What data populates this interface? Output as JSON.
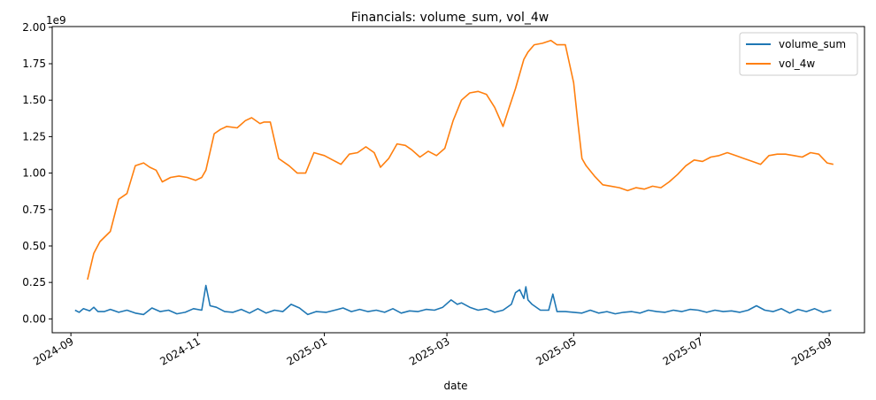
{
  "chart_data": {
    "type": "line",
    "title": "Financials: volume_sum, vol_4w",
    "xlabel": "date",
    "ylabel": "",
    "y_offset_label": "1e9",
    "ylim": [
      -0.095,
      2.005
    ],
    "xlim": [
      "2024-08-23",
      "2025-09-18"
    ],
    "x_ticks": [
      "2024-09",
      "2024-11",
      "2025-01",
      "2025-03",
      "2025-05",
      "2025-07",
      "2025-09"
    ],
    "y_ticks": [
      0.0,
      0.25,
      0.5,
      0.75,
      1.0,
      1.25,
      1.5,
      1.75,
      2.0
    ],
    "y_tick_labels": [
      "0.00",
      "0.25",
      "0.50",
      "0.75",
      "1.00",
      "1.25",
      "1.50",
      "1.75",
      "2.00"
    ],
    "grid": false,
    "legend_position": "top-right",
    "series": [
      {
        "name": "volume_sum",
        "color": "#1f77b4",
        "x": [
          "2024-09-03",
          "2024-09-05",
          "2024-09-07",
          "2024-09-10",
          "2024-09-12",
          "2024-09-14",
          "2024-09-17",
          "2024-09-20",
          "2024-09-24",
          "2024-09-28",
          "2024-10-02",
          "2024-10-06",
          "2024-10-10",
          "2024-10-14",
          "2024-10-18",
          "2024-10-22",
          "2024-10-26",
          "2024-10-30",
          "2024-11-03",
          "2024-11-05",
          "2024-11-07",
          "2024-11-10",
          "2024-11-14",
          "2024-11-18",
          "2024-11-22",
          "2024-11-26",
          "2024-11-30",
          "2024-12-04",
          "2024-12-08",
          "2024-12-12",
          "2024-12-16",
          "2024-12-20",
          "2024-12-24",
          "2024-12-28",
          "2025-01-02",
          "2025-01-06",
          "2025-01-10",
          "2025-01-14",
          "2025-01-18",
          "2025-01-22",
          "2025-01-26",
          "2025-01-30",
          "2025-02-03",
          "2025-02-07",
          "2025-02-11",
          "2025-02-15",
          "2025-02-19",
          "2025-02-23",
          "2025-02-27",
          "2025-03-03",
          "2025-03-06",
          "2025-03-08",
          "2025-03-12",
          "2025-03-16",
          "2025-03-20",
          "2025-03-24",
          "2025-03-28",
          "2025-04-01",
          "2025-04-03",
          "2025-04-05",
          "2025-04-07",
          "2025-04-08",
          "2025-04-09",
          "2025-04-11",
          "2025-04-15",
          "2025-04-19",
          "2025-04-21",
          "2025-04-23",
          "2025-04-27",
          "2025-05-01",
          "2025-05-05",
          "2025-05-09",
          "2025-05-13",
          "2025-05-17",
          "2025-05-21",
          "2025-05-25",
          "2025-05-29",
          "2025-06-02",
          "2025-06-06",
          "2025-06-10",
          "2025-06-14",
          "2025-06-18",
          "2025-06-22",
          "2025-06-26",
          "2025-06-30",
          "2025-07-04",
          "2025-07-08",
          "2025-07-12",
          "2025-07-16",
          "2025-07-20",
          "2025-07-24",
          "2025-07-28",
          "2025-08-01",
          "2025-08-05",
          "2025-08-09",
          "2025-08-13",
          "2025-08-17",
          "2025-08-21",
          "2025-08-25",
          "2025-08-29",
          "2025-09-02"
        ],
        "values": [
          0.06,
          0.045,
          0.07,
          0.055,
          0.08,
          0.05,
          0.05,
          0.065,
          0.045,
          0.06,
          0.04,
          0.03,
          0.075,
          0.05,
          0.06,
          0.035,
          0.045,
          0.07,
          0.06,
          0.23,
          0.09,
          0.08,
          0.05,
          0.045,
          0.065,
          0.04,
          0.07,
          0.04,
          0.06,
          0.05,
          0.1,
          0.075,
          0.03,
          0.05,
          0.045,
          0.06,
          0.075,
          0.05,
          0.065,
          0.05,
          0.06,
          0.045,
          0.07,
          0.04,
          0.055,
          0.05,
          0.065,
          0.06,
          0.08,
          0.13,
          0.1,
          0.11,
          0.08,
          0.06,
          0.07,
          0.045,
          0.06,
          0.1,
          0.18,
          0.2,
          0.14,
          0.22,
          0.13,
          0.1,
          0.06,
          0.06,
          0.17,
          0.05,
          0.05,
          0.045,
          0.04,
          0.06,
          0.04,
          0.05,
          0.035,
          0.045,
          0.05,
          0.04,
          0.06,
          0.05,
          0.045,
          0.06,
          0.05,
          0.065,
          0.06,
          0.045,
          0.06,
          0.05,
          0.055,
          0.045,
          0.06,
          0.09,
          0.06,
          0.05,
          0.07,
          0.04,
          0.065,
          0.05,
          0.07,
          0.045,
          0.06
        ]
      },
      {
        "name": "vol_4w",
        "color": "#ff7f0e",
        "x": [
          "2024-09-09",
          "2024-09-12",
          "2024-09-15",
          "2024-09-20",
          "2024-09-24",
          "2024-09-28",
          "2024-10-02",
          "2024-10-06",
          "2024-10-09",
          "2024-10-12",
          "2024-10-15",
          "2024-10-19",
          "2024-10-23",
          "2024-10-27",
          "2024-10-31",
          "2024-11-03",
          "2024-11-05",
          "2024-11-09",
          "2024-11-12",
          "2024-11-15",
          "2024-11-20",
          "2024-11-24",
          "2024-11-27",
          "2024-12-01",
          "2024-12-03",
          "2024-12-06",
          "2024-12-10",
          "2024-12-15",
          "2024-12-19",
          "2024-12-23",
          "2024-12-27",
          "2025-01-01",
          "2025-01-05",
          "2025-01-09",
          "2025-01-13",
          "2025-01-17",
          "2025-01-21",
          "2025-01-25",
          "2025-01-28",
          "2025-02-01",
          "2025-02-05",
          "2025-02-09",
          "2025-02-12",
          "2025-02-16",
          "2025-02-20",
          "2025-02-24",
          "2025-02-28",
          "2025-03-04",
          "2025-03-08",
          "2025-03-12",
          "2025-03-16",
          "2025-03-20",
          "2025-03-24",
          "2025-03-28",
          "2025-03-31",
          "2025-04-03",
          "2025-04-07",
          "2025-04-09",
          "2025-04-12",
          "2025-04-16",
          "2025-04-20",
          "2025-04-23",
          "2025-04-27",
          "2025-04-29",
          "2025-05-01",
          "2025-05-03",
          "2025-05-05",
          "2025-05-07",
          "2025-05-11",
          "2025-05-15",
          "2025-05-19",
          "2025-05-23",
          "2025-05-27",
          "2025-05-31",
          "2025-06-04",
          "2025-06-08",
          "2025-06-12",
          "2025-06-16",
          "2025-06-20",
          "2025-06-24",
          "2025-06-28",
          "2025-07-02",
          "2025-07-06",
          "2025-07-10",
          "2025-07-14",
          "2025-07-18",
          "2025-07-22",
          "2025-07-26",
          "2025-07-30",
          "2025-08-03",
          "2025-08-07",
          "2025-08-11",
          "2025-08-15",
          "2025-08-19",
          "2025-08-23",
          "2025-08-27",
          "2025-08-31",
          "2025-09-03"
        ],
        "values": [
          0.27,
          0.45,
          0.53,
          0.6,
          0.82,
          0.86,
          1.05,
          1.07,
          1.04,
          1.02,
          0.94,
          0.97,
          0.98,
          0.97,
          0.95,
          0.97,
          1.02,
          1.27,
          1.3,
          1.32,
          1.31,
          1.36,
          1.38,
          1.34,
          1.35,
          1.35,
          1.1,
          1.05,
          1.0,
          1.0,
          1.14,
          1.12,
          1.09,
          1.06,
          1.13,
          1.14,
          1.18,
          1.14,
          1.04,
          1.1,
          1.2,
          1.19,
          1.16,
          1.11,
          1.15,
          1.12,
          1.17,
          1.36,
          1.5,
          1.55,
          1.56,
          1.54,
          1.45,
          1.32,
          1.45,
          1.58,
          1.78,
          1.83,
          1.88,
          1.89,
          1.91,
          1.88,
          1.88,
          1.75,
          1.62,
          1.35,
          1.1,
          1.05,
          0.98,
          0.92,
          0.91,
          0.9,
          0.88,
          0.9,
          0.89,
          0.91,
          0.9,
          0.94,
          0.99,
          1.05,
          1.09,
          1.08,
          1.11,
          1.12,
          1.14,
          1.12,
          1.1,
          1.08,
          1.06,
          1.12,
          1.13,
          1.13,
          1.12,
          1.11,
          1.14,
          1.13,
          1.07,
          1.06
        ]
      }
    ]
  }
}
